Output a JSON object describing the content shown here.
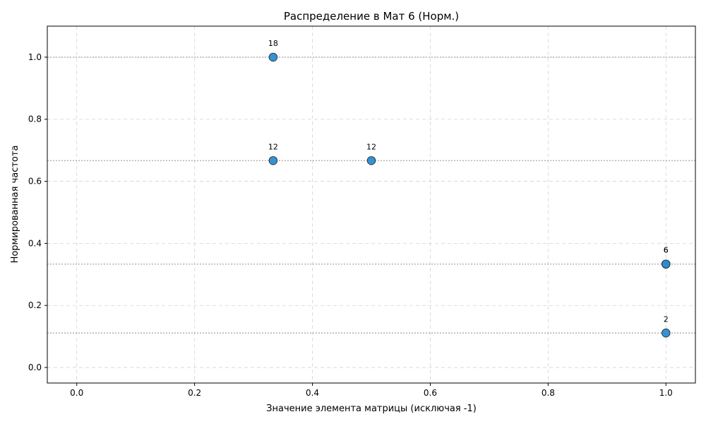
{
  "chart_data": {
    "type": "scatter",
    "title": "Распределение в Мат 6 (Норм.)",
    "xlabel": "Значение элемента матрицы (исключая -1)",
    "ylabel": "Нормированная частота",
    "xlim": [
      -0.05,
      1.05
    ],
    "ylim": [
      -0.05,
      1.1
    ],
    "xticks": [
      "0.0",
      "0.2",
      "0.4",
      "0.6",
      "0.8",
      "1.0"
    ],
    "yticks": [
      "0.0",
      "0.2",
      "0.4",
      "0.6",
      "0.8",
      "1.0"
    ],
    "grid": true,
    "reference_lines_y": [
      1.0,
      0.6667,
      0.3333,
      0.1111
    ],
    "points": [
      {
        "x": 0.3333,
        "y": 1.0,
        "label": "18"
      },
      {
        "x": 0.3333,
        "y": 0.6667,
        "label": "12"
      },
      {
        "x": 0.5,
        "y": 0.6667,
        "label": "12"
      },
      {
        "x": 1.0,
        "y": 0.3333,
        "label": "6"
      },
      {
        "x": 1.0,
        "y": 0.3333,
        "label": "6"
      },
      {
        "x": 1.0,
        "y": 0.1111,
        "label": "2"
      }
    ],
    "marker_color": "#2b8cd0",
    "marker_edge_color": "#1a1a1a",
    "grid_color": "#d3d3d3",
    "reference_line_color": "#b0b0b0"
  }
}
